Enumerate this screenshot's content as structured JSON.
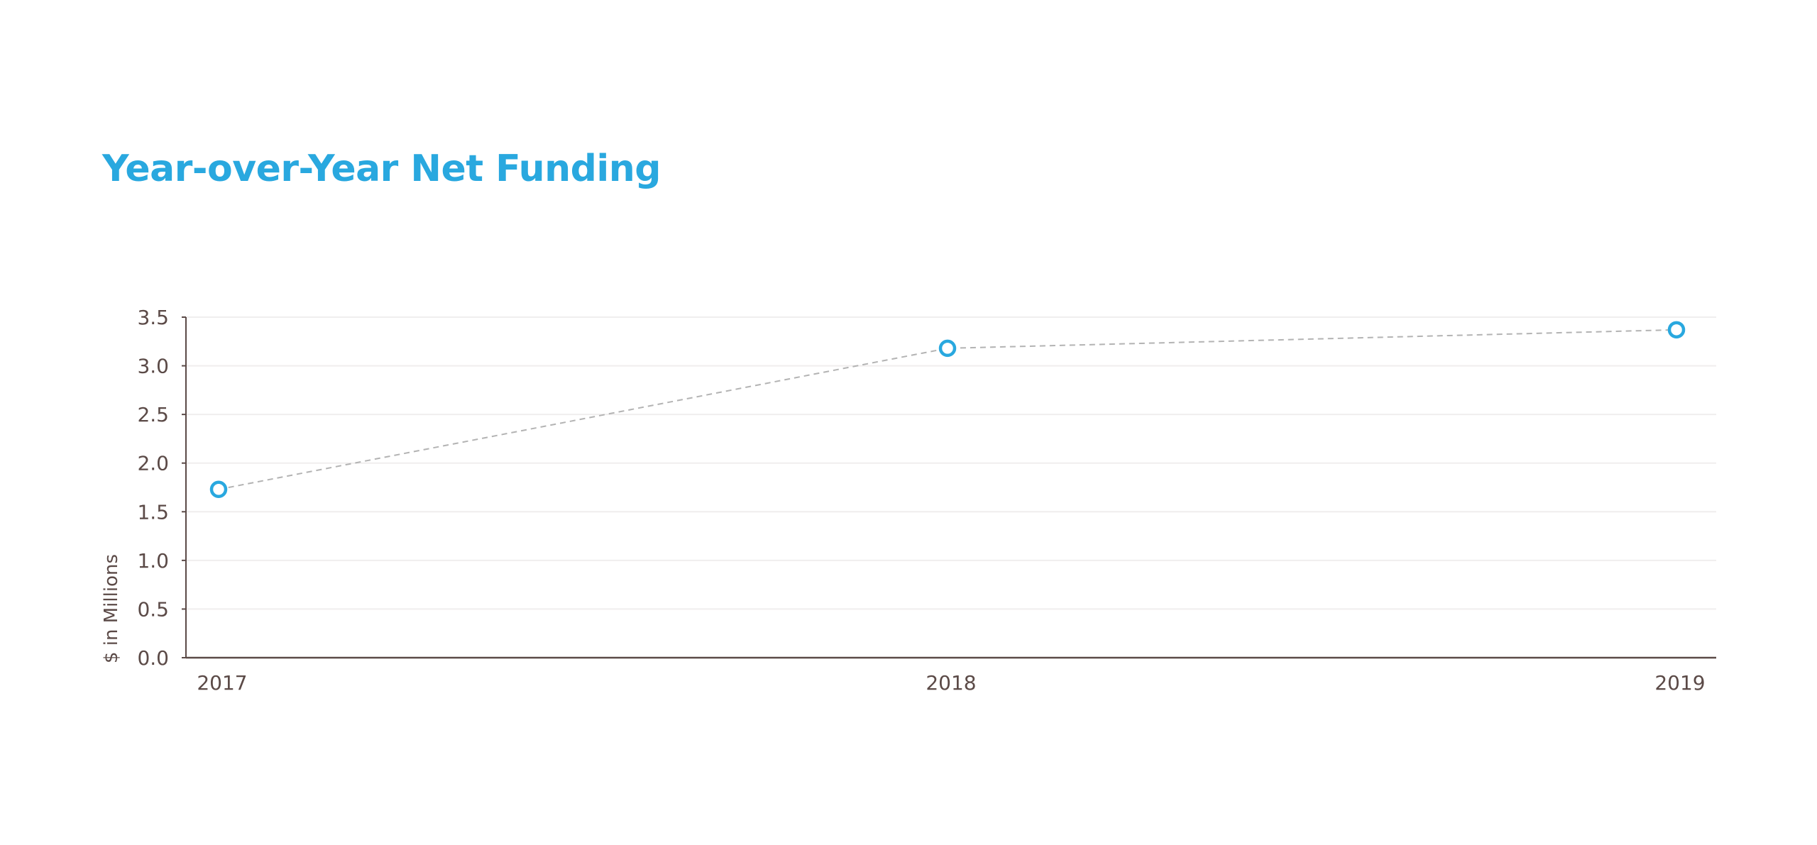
{
  "colors": {
    "title": "#29a8df",
    "marker": "#29a8df",
    "line": "#b3b3b3",
    "axis": "#5b4a47",
    "text": "#5b4a47",
    "grid": "#f0eeee"
  },
  "chart_data": {
    "type": "line",
    "title": "Year-over-Year Net Funding",
    "xlabel": "",
    "ylabel": "$ in Millions",
    "categories": [
      "2017",
      "2018",
      "2019"
    ],
    "series": [
      {
        "values": [
          1.73,
          3.18,
          3.37
        ]
      }
    ],
    "ylim": [
      0,
      3.5
    ],
    "yticks": [
      "0.0",
      "0.5",
      "1.0",
      "1.5",
      "2.0",
      "2.5",
      "3.0",
      "3.5"
    ],
    "grid": true,
    "line_style": "dashed",
    "marker": "hollow-circle"
  }
}
